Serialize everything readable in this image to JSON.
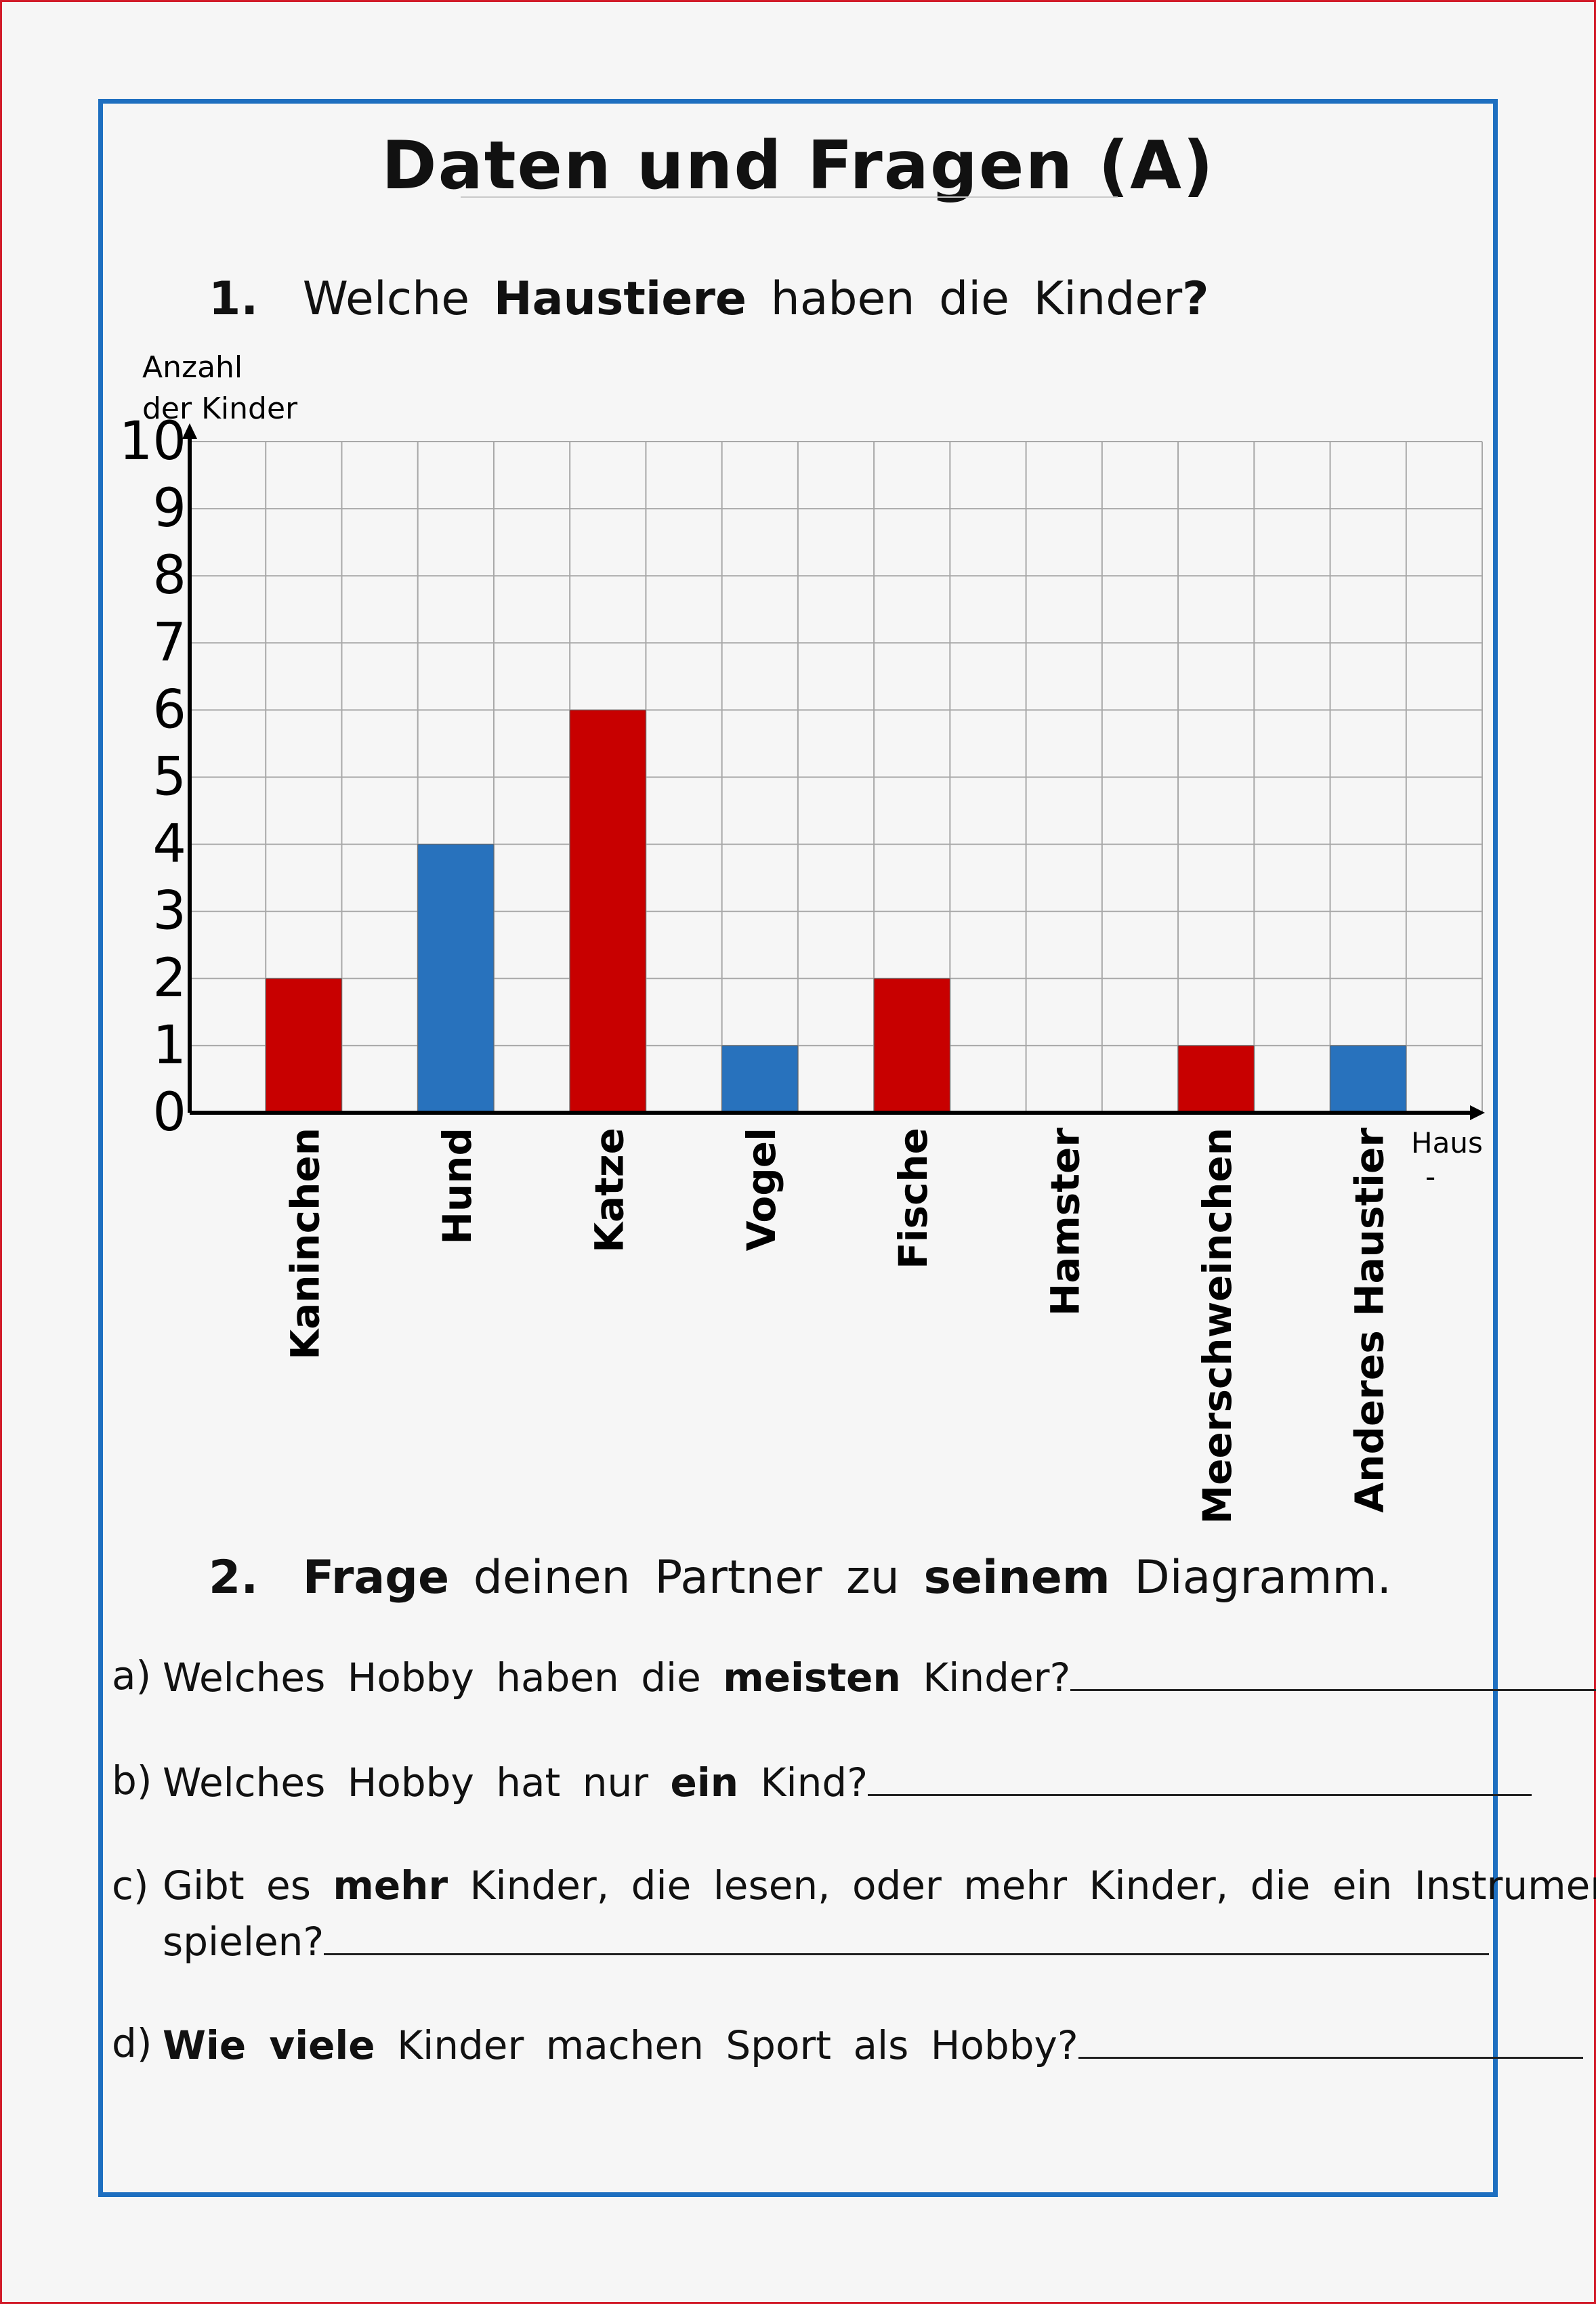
{
  "title": "Daten und Fragen (A)",
  "q1": {
    "number": "1.",
    "pre": "Welche",
    "bold": "Haustiere",
    "post": "haben die Kinder",
    "mark": "?"
  },
  "q2": {
    "number": "2.",
    "bold1": "Frage",
    "mid1": "deinen Partner zu",
    "bold2": "seinem",
    "post": "Diagramm."
  },
  "questions": [
    {
      "letter": "a)",
      "pre": "Welches Hobby haben die",
      "bold": "meisten",
      "post": "Kinder?"
    },
    {
      "letter": "b)",
      "pre": "Welches Hobby hat nur",
      "bold": "ein",
      "post": "Kind?"
    },
    {
      "letter": "c)",
      "pre": "Gibt es",
      "bold": "mehr",
      "post": "Kinder, die lesen, oder mehr Kinder, die ein Instrument",
      "line2": "spielen?"
    },
    {
      "letter": "d)",
      "pre": "",
      "bold": "Wie viele",
      "post": "Kinder machen Sport als Hobby?"
    }
  ],
  "colors": {
    "red": "#c80000",
    "blue": "#2872bd",
    "frame": "#1e6fc0",
    "grid": "#a8a8a8"
  },
  "chart_data": {
    "type": "bar",
    "ylabel_line1": "Anzahl",
    "ylabel_line2": "der Kinder",
    "xlabel_line1": "Haus",
    "xlabel_line2": "-",
    "ylim": [
      0,
      10
    ],
    "yticks": [
      "0",
      "1",
      "2",
      "3",
      "4",
      "5",
      "6",
      "7",
      "8",
      "9",
      "10"
    ],
    "grid": true,
    "categories": [
      "Kaninchen",
      "Hund",
      "Katze",
      "Vogel",
      "Fische",
      "Hamster",
      "Meerschweinchen",
      "Anderes Haustier"
    ],
    "values": [
      2,
      4,
      6,
      1,
      2,
      0,
      1,
      1
    ],
    "bar_colors": [
      "red",
      "blue",
      "red",
      "blue",
      "red",
      "red",
      "red",
      "blue"
    ]
  }
}
